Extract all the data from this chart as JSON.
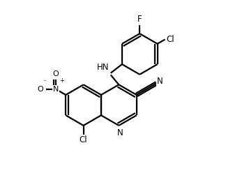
{
  "background_color": "#ffffff",
  "line_color": "#000000",
  "line_width": 1.6,
  "font_size": 8.5,
  "figsize": [
    3.34,
    2.58
  ],
  "dpi": 100,
  "xlim": [
    0,
    10
  ],
  "ylim": [
    0,
    7.7
  ]
}
